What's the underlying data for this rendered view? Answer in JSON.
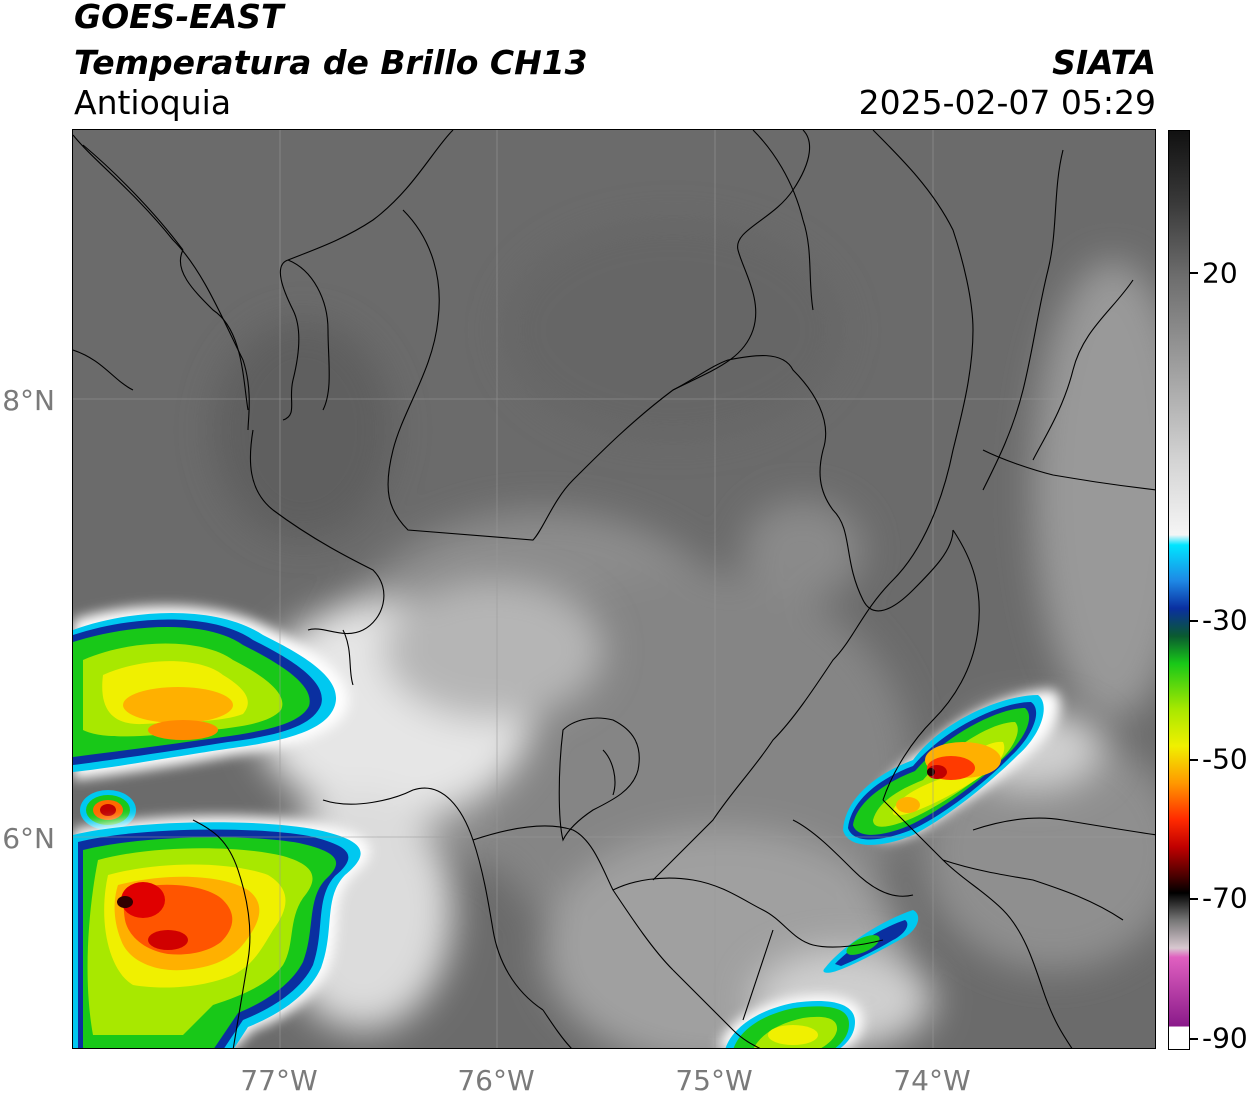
{
  "header": {
    "title_line1": "GOES-EAST",
    "title_line2": "Temperatura de Brillo CH13",
    "subtitle": "Antioquia",
    "organization": "SIATA",
    "datetime": "2025-02-07 05:29"
  },
  "map": {
    "lat_labels": [
      "8°N",
      "6°N"
    ],
    "lon_labels": [
      "77°W",
      "76°W",
      "75°W",
      "74°W"
    ]
  },
  "colorbar": {
    "tick_labels": [
      "20",
      "-30",
      "-50",
      "-70",
      "-90"
    ],
    "colors": {
      "warm_gray_top": "#111111",
      "white": "#ffffff",
      "cyan": "#00e5ff",
      "blue": "#0a2fa0",
      "green": "#18c818",
      "yellow": "#f0f000",
      "orange": "#ff9900",
      "red": "#e00000",
      "dark_red": "#600000",
      "black": "#000000",
      "magenta": "#e040c0",
      "purple": "#8a1a8a"
    }
  }
}
